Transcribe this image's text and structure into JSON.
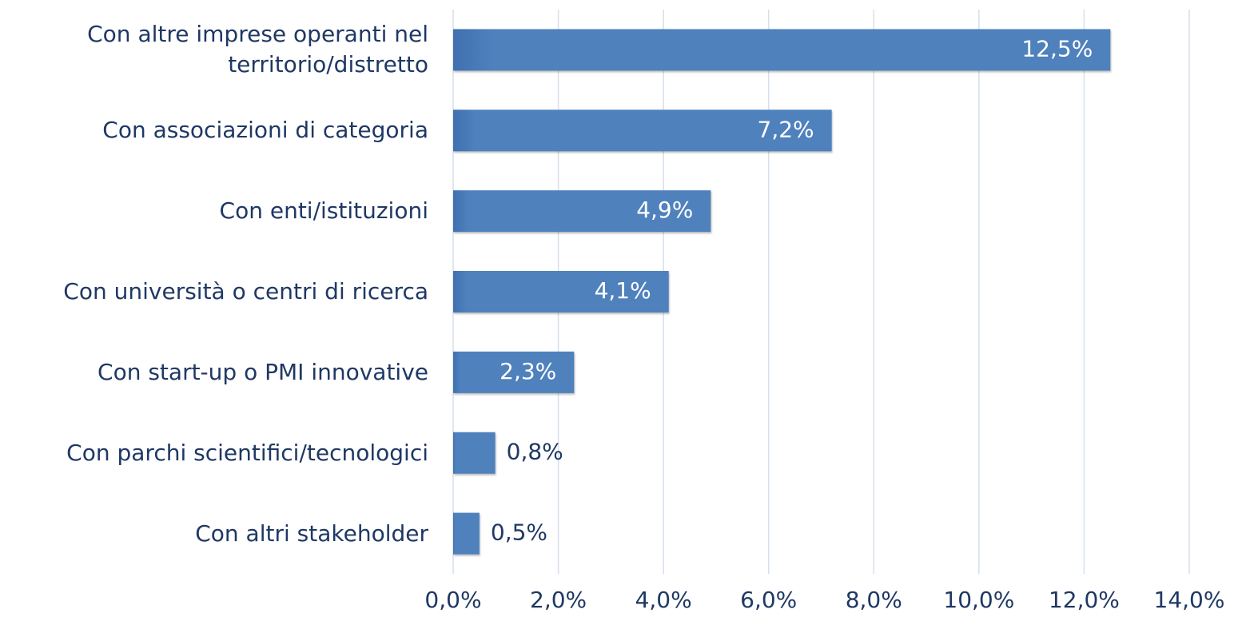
{
  "chart_data": {
    "type": "bar",
    "orientation": "horizontal",
    "categories": [
      "Con altre imprese operanti nel\nterritorio/distretto",
      "Con associazioni di categoria",
      "Con enti/istituzioni",
      "Con università o centri di ricerca",
      "Con start-up o PMI innovative",
      "Con parchi scientifici/tecnologici",
      "Con altri stakeholder"
    ],
    "values": [
      12.5,
      7.2,
      4.9,
      4.1,
      2.3,
      0.8,
      0.5
    ],
    "value_labels": [
      "12,5%",
      "7,2%",
      "4,9%",
      "4,1%",
      "2,3%",
      "0,8%",
      "0,5%"
    ],
    "color": "#4f81bd",
    "xlim": [
      0,
      14
    ],
    "xticks": [
      {
        "value": 0,
        "label": "0,0%"
      },
      {
        "value": 2,
        "label": "2,0%"
      },
      {
        "value": 4,
        "label": "4,0%"
      },
      {
        "value": 6,
        "label": "6,0%"
      },
      {
        "value": 8,
        "label": "8,0%"
      },
      {
        "value": 10,
        "label": "10,0%"
      },
      {
        "value": 12,
        "label": "12,0%"
      },
      {
        "value": 14,
        "label": "14,0%"
      }
    ],
    "grid": true
  }
}
